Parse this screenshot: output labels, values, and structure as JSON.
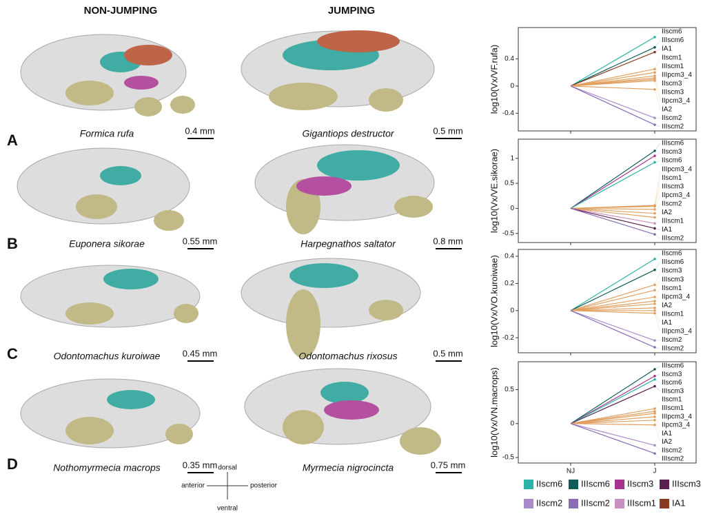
{
  "headers": {
    "non_jumping": "NON-JUMPING",
    "jumping": "JUMPING"
  },
  "rows": [
    {
      "letter": "A",
      "nj_species": "Formica rufa",
      "nj_scale": "0.4 mm",
      "j_species": "Gigantiops destructor",
      "j_scale": "0.5 mm"
    },
    {
      "letter": "B",
      "nj_species": "Euponera sikorae",
      "nj_scale": "0.55 mm",
      "j_species": "Harpegnathos saltator",
      "j_scale": "0.8 mm"
    },
    {
      "letter": "C",
      "nj_species": "Odontomachus kuroiwae",
      "nj_scale": "0.45 mm",
      "j_species": "Odontomachus rixosus",
      "j_scale": "0.5 mm"
    },
    {
      "letter": "D",
      "nj_species": "Nothomyrmecia macrops",
      "nj_scale": "0.35 mm",
      "j_species": "Myrmecia nigrocincta",
      "j_scale": "0.75 mm"
    }
  ],
  "compass": {
    "dorsal": "dorsal",
    "ventral": "ventral",
    "anterior": "anterior",
    "posterior": "posterior"
  },
  "chart_data": [
    {
      "type": "line",
      "y_label": "log10(Vx/VF.rufa)",
      "categories": [
        null,
        null
      ],
      "ylim": [
        -0.6,
        0.8
      ],
      "yticks": [
        0.4,
        0.0,
        -0.4
      ],
      "series": [
        {
          "name": "IIscm6",
          "color": "#2bb3a8",
          "values": [
            0,
            0.72
          ]
        },
        {
          "name": "IIIscm6",
          "color": "#0f5b57",
          "values": [
            0,
            0.57
          ]
        },
        {
          "name": "IA1",
          "color": "#8b3a22",
          "values": [
            0,
            0.5
          ]
        },
        {
          "name": "IIscm1",
          "color": "#e0a060",
          "values": [
            0,
            0.25
          ]
        },
        {
          "name": "IIIscm1",
          "color": "#e0a060",
          "values": [
            0,
            0.2
          ]
        },
        {
          "name": "IIIpcm3_4",
          "color": "#e0a060",
          "values": [
            0,
            0.15
          ]
        },
        {
          "name": "IIscm3",
          "color": "#e0a060",
          "values": [
            0,
            0.12
          ]
        },
        {
          "name": "IIIscm3",
          "color": "#e0a060",
          "values": [
            0,
            0.1
          ]
        },
        {
          "name": "IIpcm3_4",
          "color": "#e0a060",
          "values": [
            0,
            0.08
          ]
        },
        {
          "name": "IA2",
          "color": "#e0a060",
          "values": [
            0,
            -0.05
          ]
        },
        {
          "name": "IIscm2",
          "color": "#a98bcb",
          "values": [
            0,
            -0.47
          ]
        },
        {
          "name": "IIIscm2",
          "color": "#8a6bb5",
          "values": [
            0,
            -0.57
          ]
        }
      ]
    },
    {
      "type": "line",
      "y_label": "log10(Vx/VE.sikorae)",
      "categories": [
        null,
        null
      ],
      "ylim": [
        -0.6,
        1.3
      ],
      "yticks": [
        1.0,
        0.5,
        0.0,
        -0.5
      ],
      "series": [
        {
          "name": "IIIscm6",
          "color": "#0f5b57",
          "values": [
            0,
            1.15
          ]
        },
        {
          "name": "IIscm3",
          "color": "#a8328f",
          "values": [
            0,
            1.05
          ]
        },
        {
          "name": "IIscm6",
          "color": "#2bb3a8",
          "values": [
            0,
            0.92
          ]
        },
        {
          "name": "IIIpcm3_4",
          "color": "#e0a060",
          "values": [
            0,
            0.06
          ]
        },
        {
          "name": "IIscm1",
          "color": "#e0a060",
          "values": [
            0,
            0.05
          ]
        },
        {
          "name": "IIIscm3",
          "color": "#e0a060",
          "values": [
            0,
            0.04
          ]
        },
        {
          "name": "IIpcm3_4",
          "color": "#e0a060",
          "values": [
            0,
            -0.02
          ]
        },
        {
          "name": "IIscm2",
          "color": "#e0a060",
          "values": [
            0,
            -0.1
          ]
        },
        {
          "name": "IA2",
          "color": "#e0a060",
          "values": [
            0,
            -0.18
          ]
        },
        {
          "name": "IIIscm1",
          "color": "#c98fbf",
          "values": [
            0,
            -0.3
          ]
        },
        {
          "name": "IA1",
          "color": "#5a1f4f",
          "values": [
            0,
            -0.4
          ]
        },
        {
          "name": "IIIscm2",
          "color": "#8a6bb5",
          "values": [
            0,
            -0.52
          ]
        }
      ]
    },
    {
      "type": "line",
      "y_label": "log10(Vx/VO.kuroiwae)",
      "categories": [
        null,
        null
      ],
      "ylim": [
        -0.28,
        0.42
      ],
      "yticks": [
        0.4,
        0.2,
        0.0,
        -0.2
      ],
      "series": [
        {
          "name": "IIscm6",
          "color": "#2bb3a8",
          "values": [
            0,
            0.38
          ]
        },
        {
          "name": "IIIscm6",
          "color": "#0f5b57",
          "values": [
            0,
            0.3
          ]
        },
        {
          "name": "IIscm3",
          "color": "#e0a060",
          "values": [
            0,
            0.19
          ]
        },
        {
          "name": "IIIscm3",
          "color": "#e0a060",
          "values": [
            0,
            0.15
          ]
        },
        {
          "name": "IIscm1",
          "color": "#e0a060",
          "values": [
            0,
            0.1
          ]
        },
        {
          "name": "IIpcm3_4",
          "color": "#e0a060",
          "values": [
            0,
            0.07
          ]
        },
        {
          "name": "IA2",
          "color": "#e0a060",
          "values": [
            0,
            0.05
          ]
        },
        {
          "name": "IIIscm1",
          "color": "#e0a060",
          "values": [
            0,
            0.02
          ]
        },
        {
          "name": "IA1",
          "color": "#e0a060",
          "values": [
            0,
            0.0
          ]
        },
        {
          "name": "IIIpcm3_4",
          "color": "#e0a060",
          "values": [
            0,
            -0.02
          ]
        },
        {
          "name": "IIscm2",
          "color": "#a98bcb",
          "values": [
            0,
            -0.22
          ]
        },
        {
          "name": "IIIscm2",
          "color": "#8a6bb5",
          "values": [
            0,
            -0.27
          ]
        }
      ]
    },
    {
      "type": "line",
      "y_label": "log10(Vx/VN.macrops)",
      "categories": [
        "NJ",
        "J"
      ],
      "ylim": [
        -0.52,
        0.85
      ],
      "yticks": [
        0.5,
        0.0,
        -0.5
      ],
      "series": [
        {
          "name": "IIIscm6",
          "color": "#0f5b57",
          "values": [
            0,
            0.8
          ]
        },
        {
          "name": "IIscm3",
          "color": "#a8328f",
          "values": [
            0,
            0.7
          ]
        },
        {
          "name": "IIscm6",
          "color": "#2bb3a8",
          "values": [
            0,
            0.65
          ]
        },
        {
          "name": "IIIscm3",
          "color": "#5a1f4f",
          "values": [
            0,
            0.55
          ]
        },
        {
          "name": "IIscm1",
          "color": "#e0a060",
          "values": [
            0,
            0.22
          ]
        },
        {
          "name": "IIIscm1",
          "color": "#e0a060",
          "values": [
            0,
            0.18
          ]
        },
        {
          "name": "IIIpcm3_4",
          "color": "#e0a060",
          "values": [
            0,
            0.15
          ]
        },
        {
          "name": "IIpcm3_4",
          "color": "#e0a060",
          "values": [
            0,
            0.1
          ]
        },
        {
          "name": "IA1",
          "color": "#e0a060",
          "values": [
            0,
            0.05
          ]
        },
        {
          "name": "IA2",
          "color": "#e0a060",
          "values": [
            0,
            -0.02
          ]
        },
        {
          "name": "IIscm2",
          "color": "#a98bcb",
          "values": [
            0,
            -0.32
          ]
        },
        {
          "name": "IIIscm2",
          "color": "#8a6bb5",
          "values": [
            0,
            -0.44
          ]
        }
      ]
    }
  ],
  "legend": [
    {
      "name": "IIscm6",
      "color": "#2bb3a8"
    },
    {
      "name": "IIIscm6",
      "color": "#0f5b57"
    },
    {
      "name": "IIscm3",
      "color": "#a8328f"
    },
    {
      "name": "IIIscm3",
      "color": "#5a1f4f"
    },
    {
      "name": "IIscm2",
      "color": "#a98bcb"
    },
    {
      "name": "IIIscm2",
      "color": "#8a6bb5"
    },
    {
      "name": "IIIscm1",
      "color": "#c98fbf"
    },
    {
      "name": "IA1",
      "color": "#8b3a22"
    }
  ]
}
